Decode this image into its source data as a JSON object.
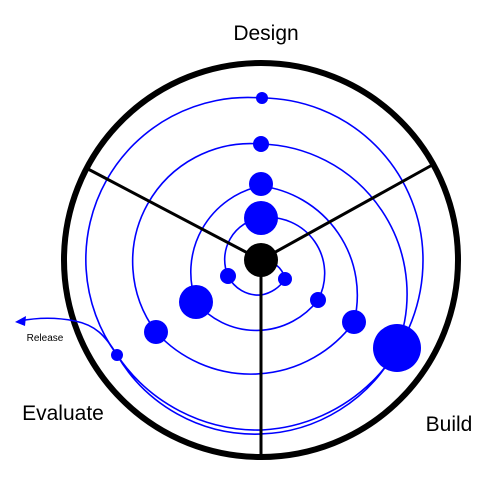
{
  "diagram": {
    "phases": {
      "design": "Design",
      "build": "Build",
      "evaluate": "Evaluate"
    },
    "release_label": "Release",
    "colors": {
      "outline": "#000000",
      "spiral": "#0000ff",
      "node": "#0000ff",
      "center": "#000000",
      "background": "#ffffff"
    }
  }
}
